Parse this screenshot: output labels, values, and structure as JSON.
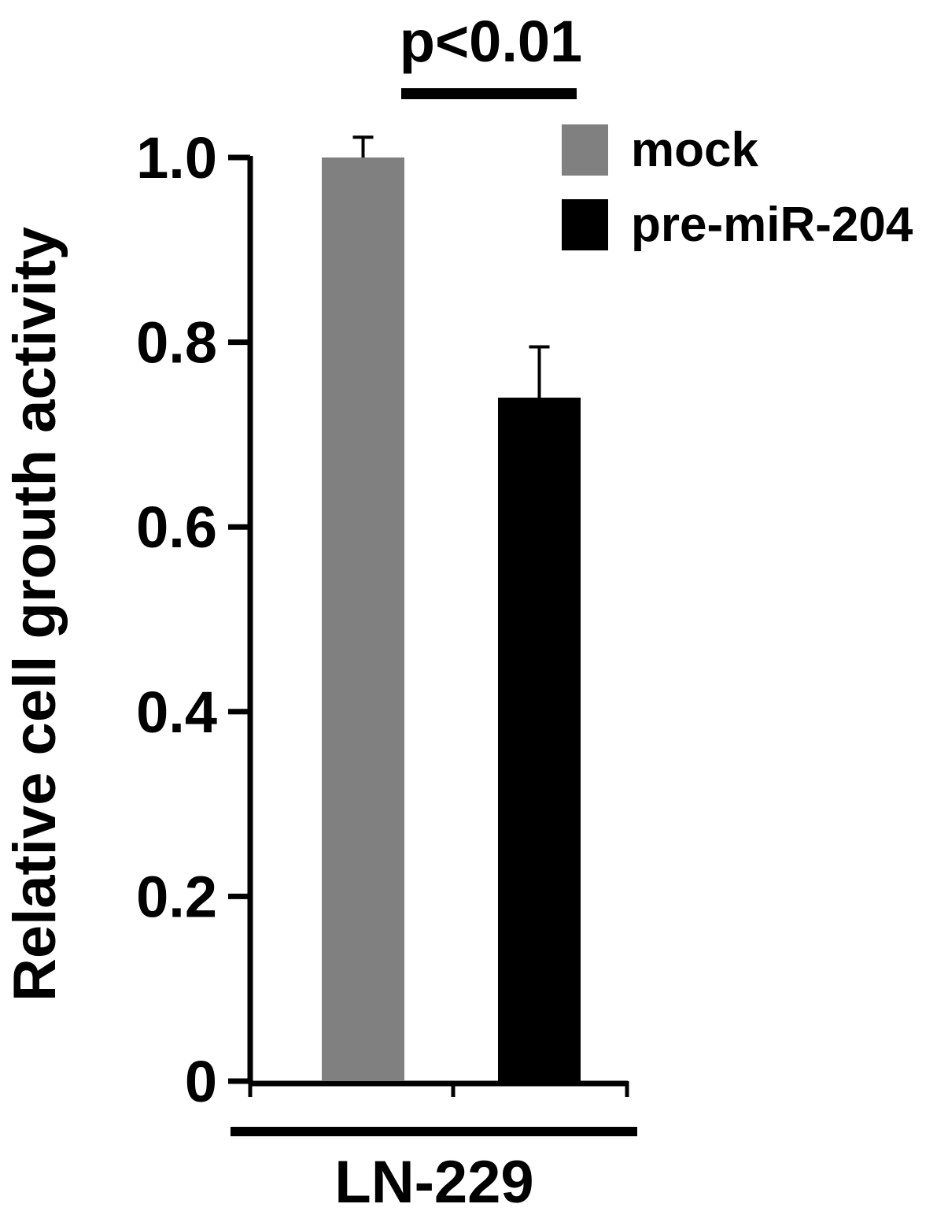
{
  "chart_data": {
    "type": "bar",
    "title": "",
    "xlabel": "LN-229",
    "ylabel": "Relative cell grouth activity",
    "ylim": [
      0,
      1.0
    ],
    "yticks": [
      0,
      0.2,
      0.4,
      0.6,
      0.8,
      1.0
    ],
    "ytick_labels": [
      "0",
      "0.2",
      "0.4",
      "0.6",
      "0.8",
      "1.0"
    ],
    "grid": false,
    "legend_position": "top-right",
    "series": [
      {
        "name": "mock",
        "value": 1.0,
        "error": 0.022,
        "color": "#808080"
      },
      {
        "name": "pre-miR-204",
        "value": 0.74,
        "error": 0.055,
        "color": "#000000"
      }
    ],
    "annotation": {
      "text": "p<0.01",
      "between": [
        "mock",
        "pre-miR-204"
      ]
    }
  }
}
